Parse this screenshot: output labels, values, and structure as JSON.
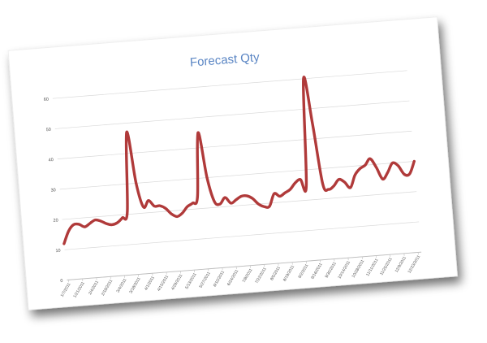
{
  "chart_data": {
    "type": "line",
    "title": "Forecast Qty",
    "xlabel": "",
    "ylabel": "",
    "ylim": [
      0,
      60
    ],
    "yticks": [
      0,
      10,
      20,
      30,
      40,
      50,
      60
    ],
    "grid": true,
    "legend": "none",
    "x_tick_labels": [
      "1/7/2011",
      "1/21/2011",
      "2/4/2011",
      "2/18/2011",
      "3/4/2011",
      "3/18/2011",
      "4/1/2011",
      "4/15/2011",
      "4/29/2011",
      "5/13/2011",
      "5/27/2011",
      "6/10/2011",
      "6/24/2011",
      "7/8/2011",
      "7/22/2011",
      "8/5/2011",
      "8/19/2011",
      "9/2/2011",
      "9/16/2011",
      "9/30/2011",
      "10/14/2011",
      "10/28/2011",
      "11/11/2011",
      "11/25/2011",
      "12/9/2011",
      "12/23/2011"
    ],
    "series": [
      {
        "color": "#b03a3a",
        "values": [
          12,
          16,
          18,
          18,
          17,
          18,
          19,
          18.5,
          17.5,
          17,
          17.5,
          19,
          21,
          47,
          30,
          22,
          24,
          22,
          22,
          21,
          19,
          18,
          19,
          21,
          22,
          24,
          45,
          30,
          22,
          21,
          23,
          21,
          22,
          23,
          23,
          22,
          20,
          19,
          19,
          23,
          22,
          23,
          24,
          26,
          27,
          25,
          60,
          45,
          25,
          23,
          24,
          26,
          25,
          23,
          27,
          29,
          30,
          32,
          29,
          25,
          27,
          30,
          29,
          26,
          26,
          30
        ]
      }
    ],
    "colors": {
      "line": "#b03a3a",
      "title": "#5b86c4",
      "grid": "#d9d9d9",
      "axis": "#bfbfbf"
    }
  }
}
